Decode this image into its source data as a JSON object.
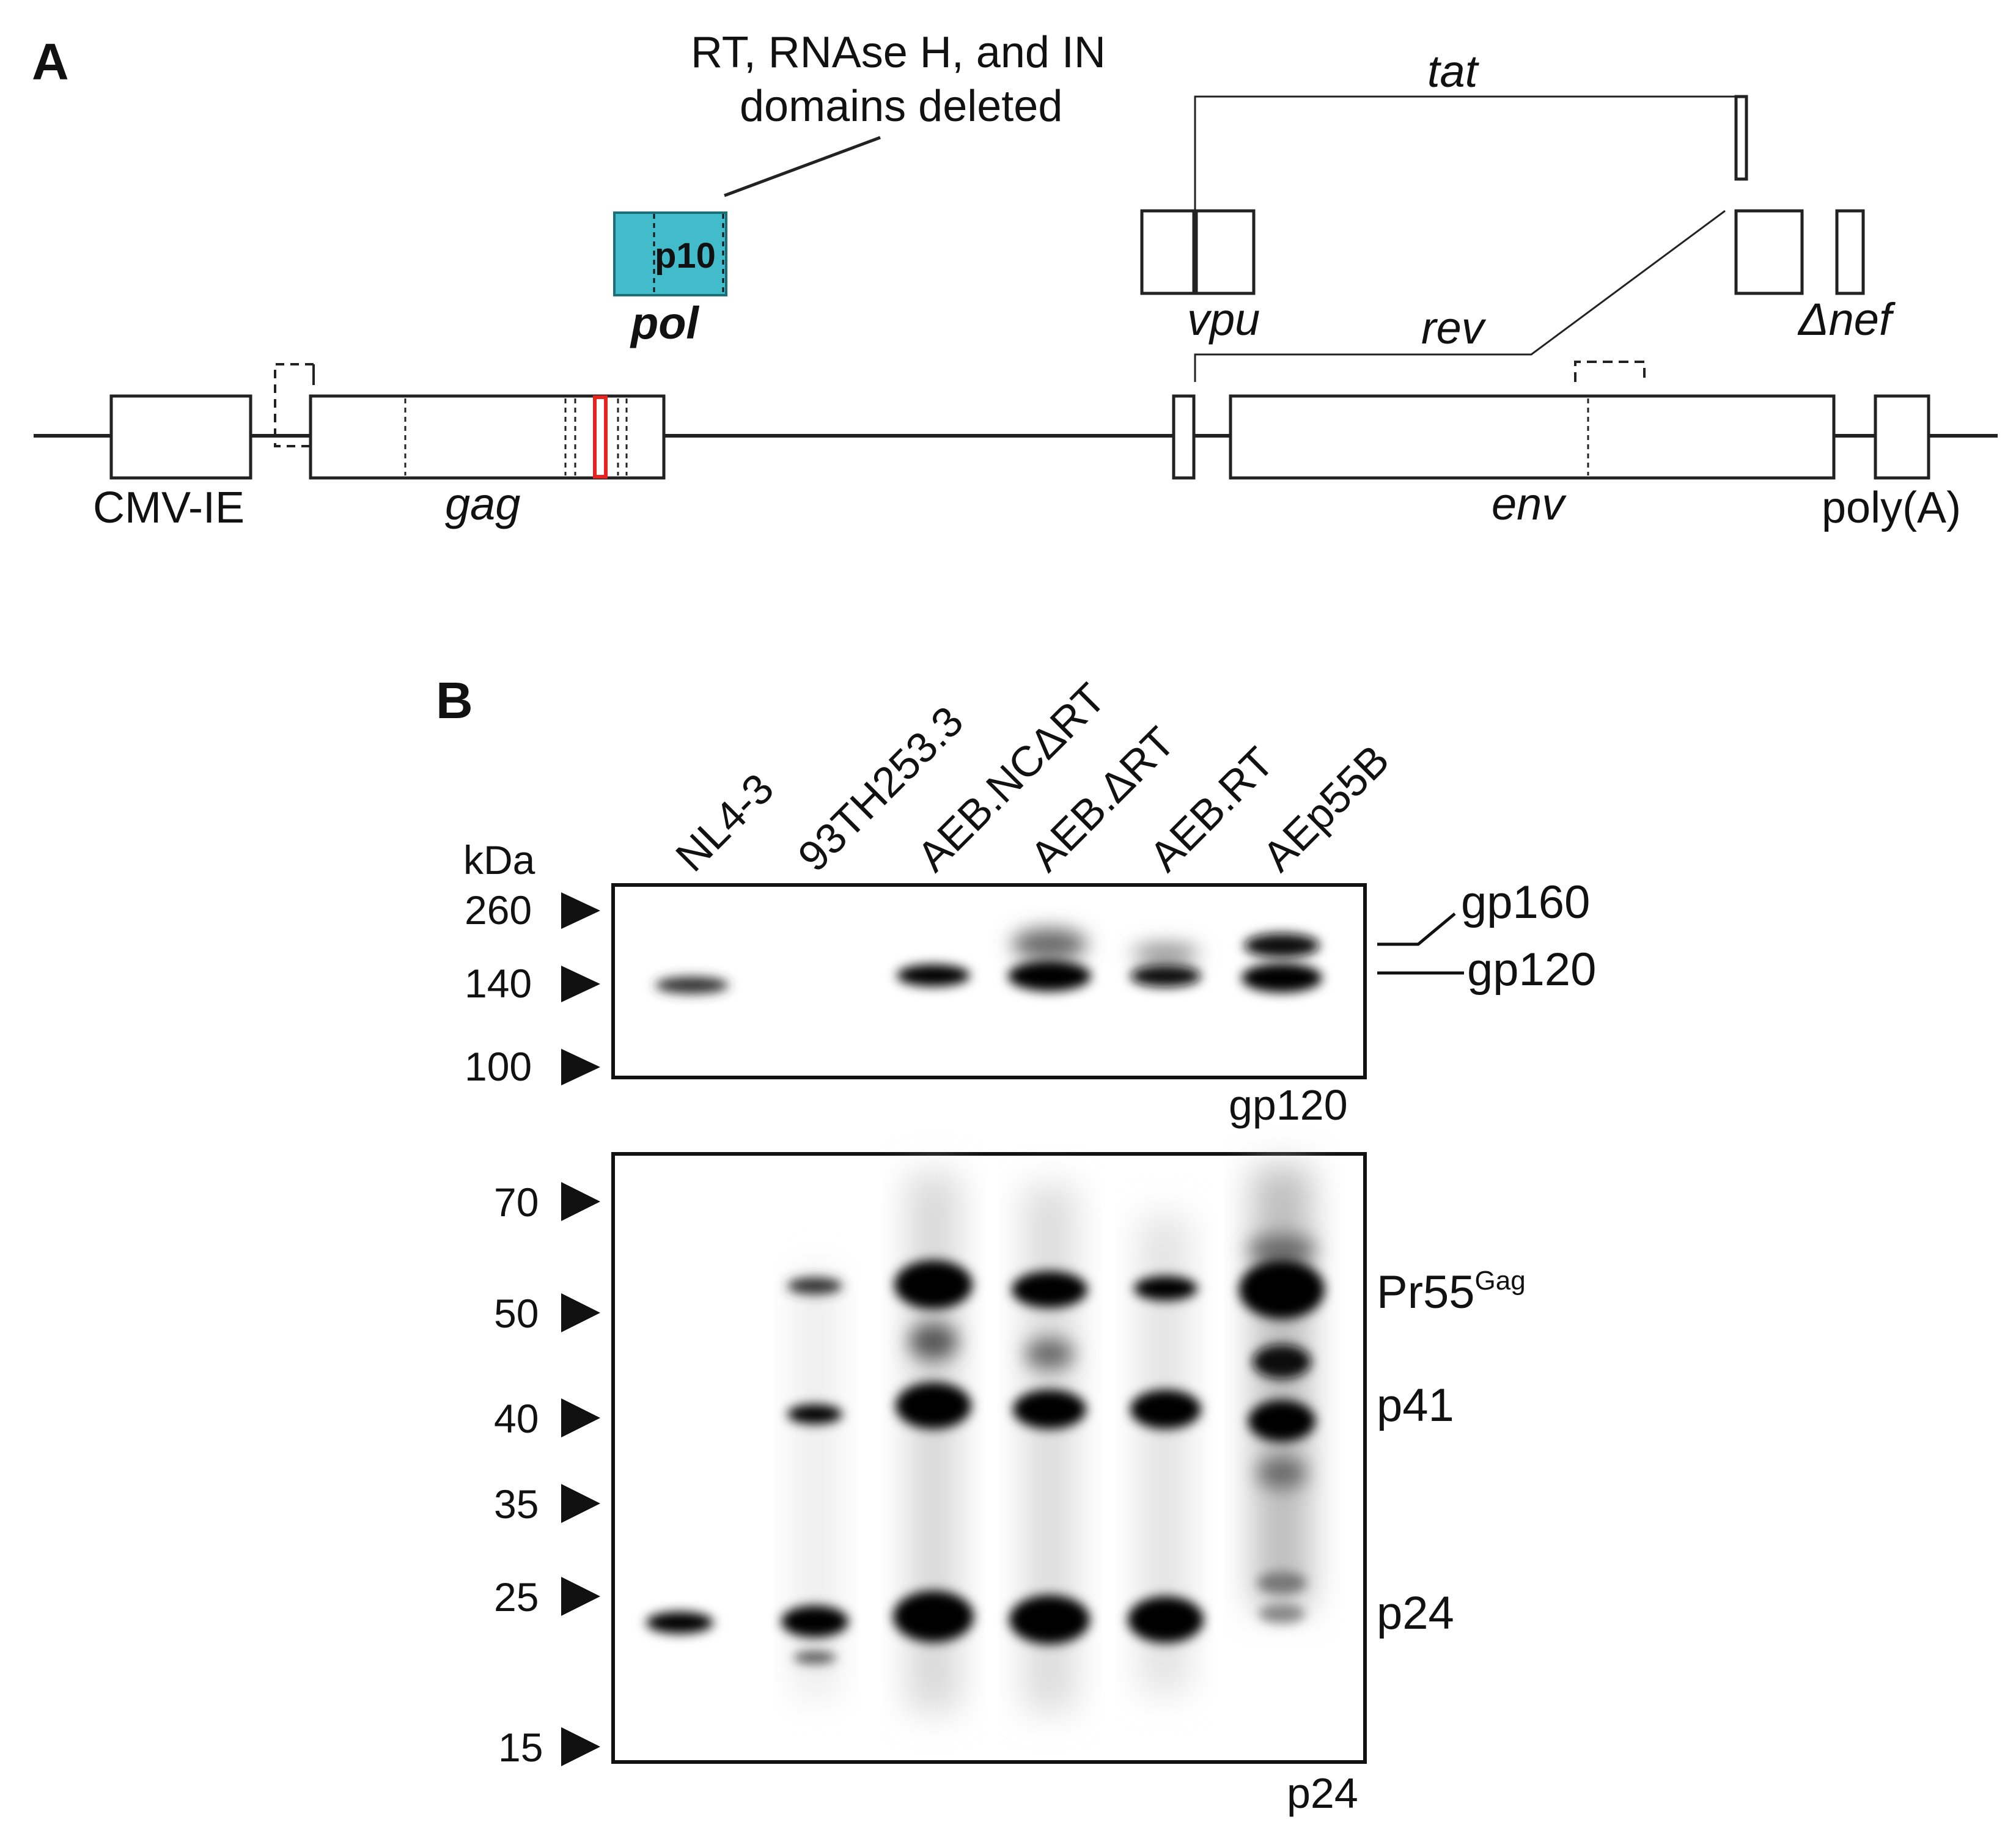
{
  "panel_a": {
    "letter": "A",
    "deletion_note_line1": "RT, RNAse H, and IN",
    "deletion_note_line2": "domains deleted",
    "genes": {
      "tat": "tat",
      "vpu": "vpu",
      "rev": "rev",
      "nef": "Δnef",
      "pol": "pol",
      "p10": "p10",
      "gag": "gag",
      "env": "env",
      "cmv": "CMV-IE",
      "polya": "poly(A)"
    },
    "colors": {
      "pol_fill": "#42bccb",
      "mutation": "#e8231f"
    }
  },
  "panel_b": {
    "letter": "B",
    "lanes": [
      "NL4-3",
      "93TH253.3",
      "AEB.NCΔRT",
      "AEB.ΔRT",
      "AEB.RT",
      "AEp55B"
    ],
    "kda_title": "kDa",
    "gp120_blot": {
      "caption": "gp120",
      "markers": [
        "260",
        "140",
        "100"
      ],
      "bands": [
        "gp160",
        "gp120"
      ]
    },
    "p24_blot": {
      "caption": "p24",
      "markers": [
        "70",
        "50",
        "40",
        "35",
        "25",
        "15"
      ],
      "band_pr55": "Pr55",
      "band_pr55_sup": "Gag",
      "band_p41": "p41",
      "band_p24": "p24"
    }
  }
}
